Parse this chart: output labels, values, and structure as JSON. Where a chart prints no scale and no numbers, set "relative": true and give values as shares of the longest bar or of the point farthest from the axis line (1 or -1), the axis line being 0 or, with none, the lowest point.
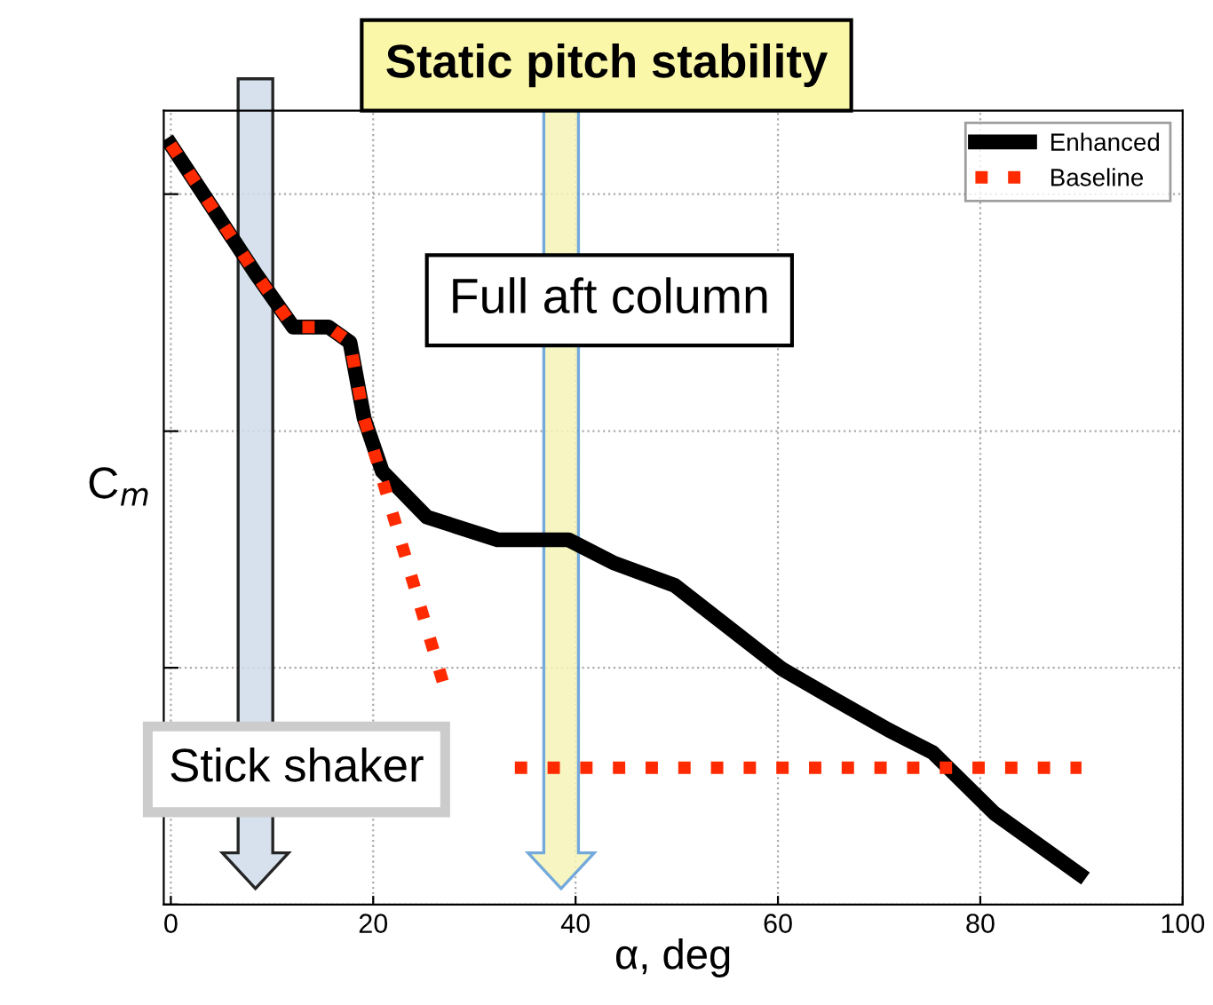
{
  "chart_data": {
    "type": "line",
    "title": "Static pitch stability",
    "xlabel": "α, deg",
    "ylabel": "C$_{m}$",
    "relative": true,
    "xlim": [
      -0.7,
      100
    ],
    "xticks": [
      0,
      20,
      40,
      60,
      80,
      100
    ],
    "grid": true,
    "legend": "top right",
    "annotations": [
      "Full aft column",
      "Stick shaker"
    ],
    "series": [
      {
        "name": "Enhanced",
        "color": "#000000",
        "line_style": "solid",
        "x": [
          0,
          8.4,
          12.1,
          15.6,
          17.7,
          19.1,
          20.9,
          25.3,
          32.3,
          39.3,
          43.7,
          49.8,
          60.4,
          65.6,
          70.9,
          75.3,
          81.4,
          89.8
        ],
        "values": [
          1.0,
          0.83,
          0.76,
          0.76,
          0.74,
          0.64,
          0.57,
          0.51,
          0.48,
          0.48,
          0.45,
          0.42,
          0.31,
          0.27,
          0.23,
          0.2,
          0.12,
          0.04
        ]
      },
      {
        "name": "Baseline",
        "color": "#ff2a00",
        "line_style": "dotted",
        "x": [
          0,
          8.4,
          12.1,
          15.6,
          17.7,
          19.1,
          27.4,
          30.5,
          34,
          90
        ],
        "values": [
          1.0,
          0.83,
          0.76,
          0.76,
          0.74,
          0.64,
          0.27,
          null,
          0.18,
          0.18
        ]
      }
    ]
  }
}
